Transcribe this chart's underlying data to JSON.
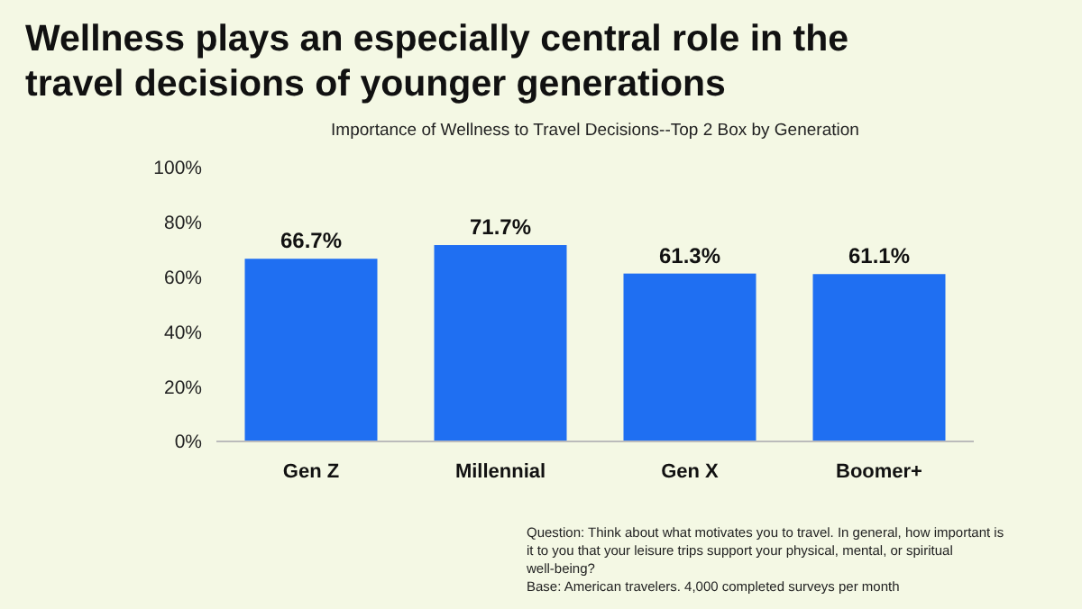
{
  "chart_data": {
    "type": "bar",
    "title": "Wellness plays an especially central role in the travel decisions of younger generations",
    "subtitle": "Importance of Wellness to Travel Decisions--Top 2 Box by Generation",
    "categories": [
      "Gen Z",
      "Millennial",
      "Gen X",
      "Boomer+"
    ],
    "values": [
      66.7,
      71.7,
      61.3,
      61.1
    ],
    "color": "#1f6ff2",
    "value_labels": [
      "66.7%",
      "71.7%",
      "61.3%",
      "61.1%"
    ],
    "ylim": [
      0,
      100
    ],
    "yticks": [
      {
        "value": 0,
        "label": "0%"
      },
      {
        "value": 20,
        "label": "20%"
      },
      {
        "value": 40,
        "label": "40%"
      },
      {
        "value": 60,
        "label": "60%"
      },
      {
        "value": 80,
        "label": "80%"
      },
      {
        "value": 100,
        "label": "100%"
      }
    ],
    "grid": false,
    "annotations": [
      "Question: Think about what motivates you to travel.  In general, how important is it to you that your leisure trips support your physical, mental, or spiritual well-being?",
      "Base: American travelers. 4,000 completed surveys per month"
    ]
  }
}
